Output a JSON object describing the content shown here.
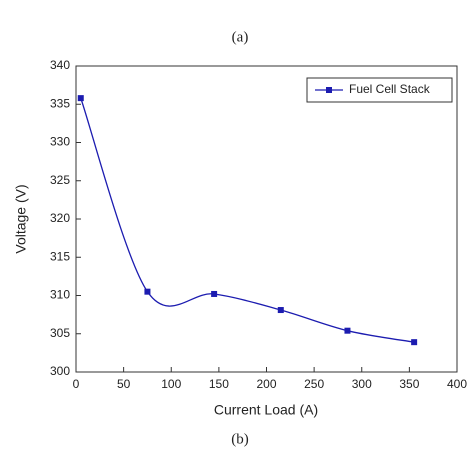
{
  "chart_data": {
    "type": "line",
    "title": "(a)",
    "caption": "(b)",
    "x_label": "Current Load (A)",
    "y_label": "Voltage (V)",
    "x": [
      5,
      75,
      145,
      215,
      285,
      355
    ],
    "series": [
      {
        "name": "Fuel Cell Stack",
        "color": "#1c1cb0",
        "values": [
          335.8,
          310.5,
          310.2,
          308.1,
          305.4,
          303.9
        ]
      }
    ],
    "xlim": [
      0,
      400
    ],
    "xticks": [
      0,
      50,
      100,
      150,
      200,
      250,
      300,
      350,
      400
    ],
    "ylim": [
      300,
      340
    ],
    "yticks": [
      300,
      305,
      310,
      315,
      320,
      325,
      330,
      335,
      340
    ],
    "legend": "top-right",
    "smooth": true
  }
}
